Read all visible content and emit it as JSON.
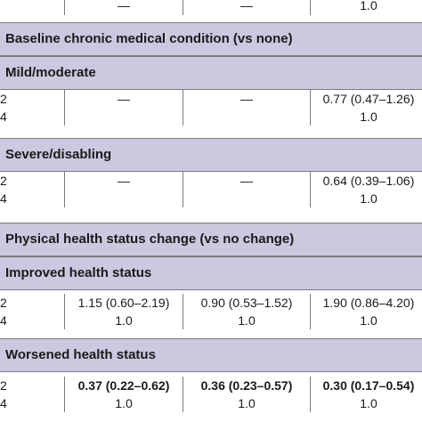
{
  "table": {
    "top_row": {
      "c1": "—",
      "c2": "—",
      "c3": "1.0"
    },
    "sections": [
      {
        "title": "Baseline chronic medical condition (vs none)"
      },
      {
        "title": "Mild/moderate",
        "rows": [
          {
            "label": "2",
            "c1": "—",
            "c2": "—",
            "c3": "0.77 (0.47–1.26)"
          },
          {
            "label": "4",
            "c1": "",
            "c2": "",
            "c3": "1.0"
          }
        ]
      },
      {
        "title": "Severe/disabling",
        "rows": [
          {
            "label": "2",
            "c1": "—",
            "c2": "—",
            "c3": "0.64 (0.39–1.06)"
          },
          {
            "label": "4",
            "c1": "",
            "c2": "",
            "c3": "1.0"
          }
        ]
      },
      {
        "title": "Physical health status change (vs no change)"
      },
      {
        "title": "Improved health status",
        "rows": [
          {
            "label": "2",
            "c1": "1.15 (0.60–2.19)",
            "c2": "0.90 (0.53–1.52)",
            "c3": "1.90 (0.86–4.20)"
          },
          {
            "label": "4",
            "c1": "1.0",
            "c2": "1.0",
            "c3": "1.0"
          }
        ]
      },
      {
        "title": "Worsened health status",
        "rows": [
          {
            "label": "2",
            "c1": "0.37 (0.22–0.62)",
            "c2": "0.36 (0.23–0.57)",
            "c3": "0.30 (0.17–0.54)"
          },
          {
            "label": "4",
            "c1": "1.0",
            "c2": "1.0",
            "c3": "1.0"
          }
        ]
      }
    ]
  },
  "colors": {
    "section_band": "#cdc8df",
    "rule": "#7b7b7b"
  }
}
